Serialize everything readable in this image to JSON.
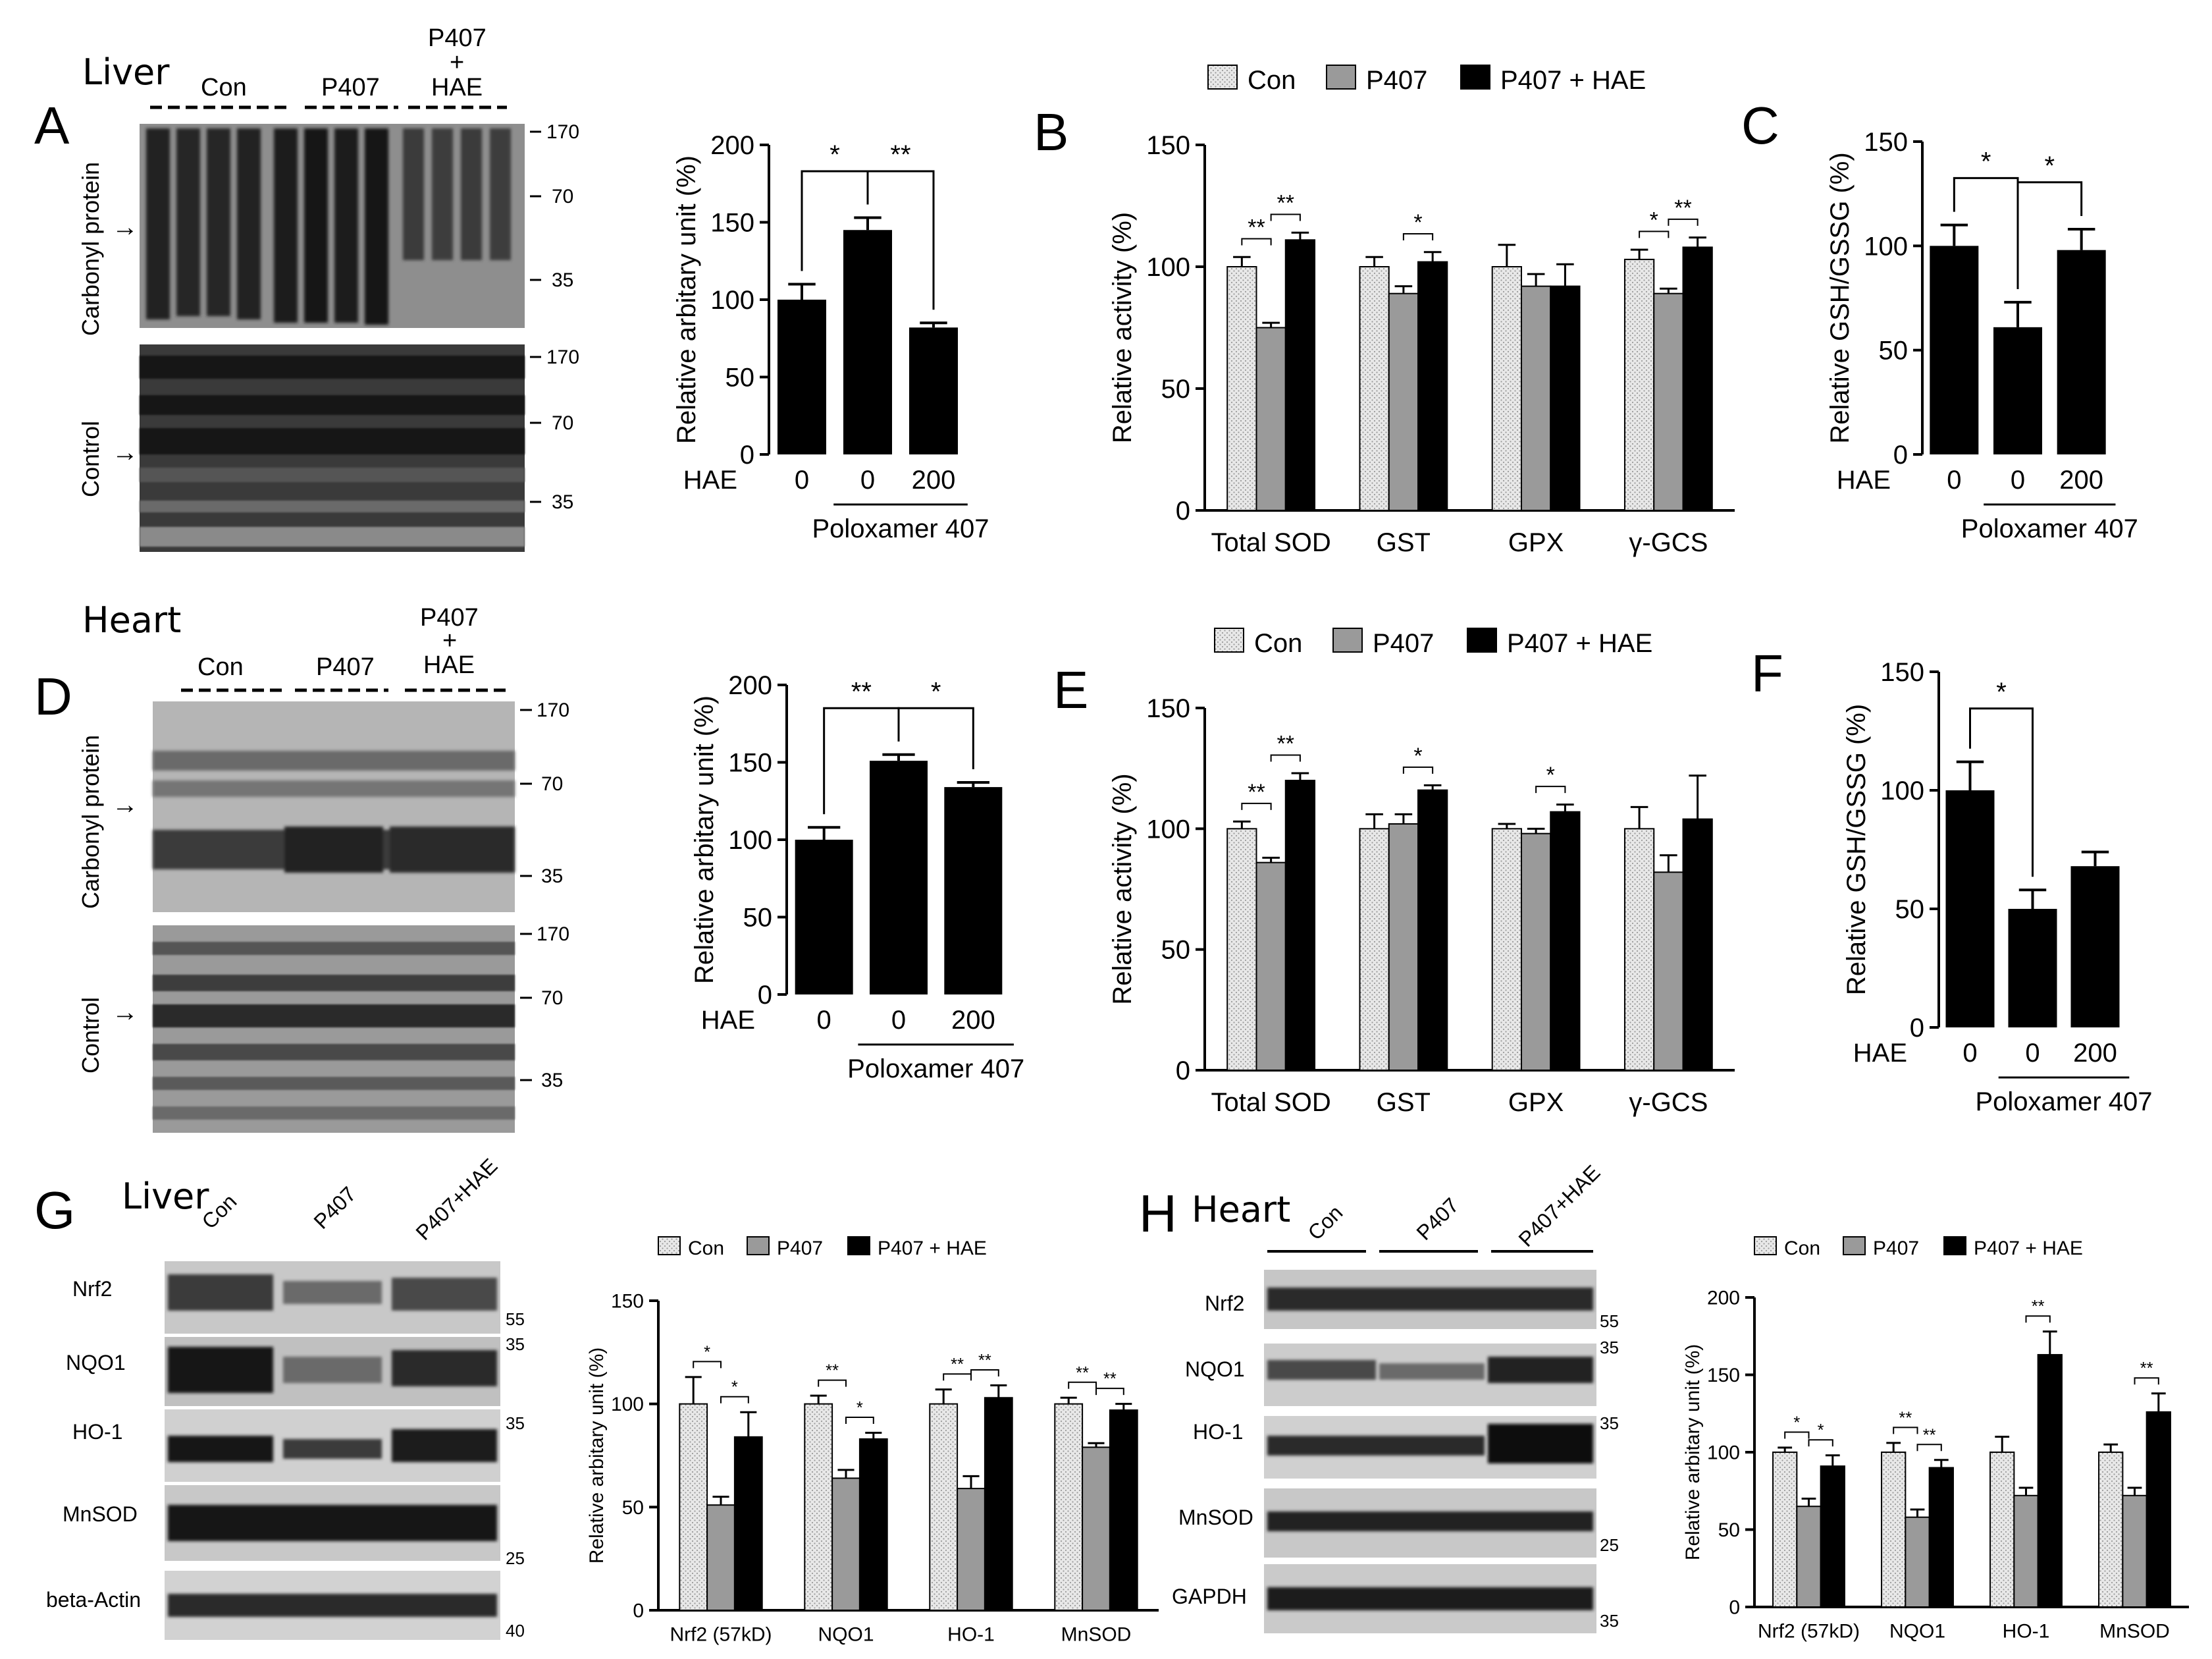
{
  "figure": {
    "panel_letters": [
      "A",
      "B",
      "C",
      "D",
      "E",
      "F",
      "G",
      "H"
    ],
    "tissues": {
      "liver": "Liver",
      "heart": "Heart"
    },
    "groups": {
      "con": "Con",
      "p407": "P407",
      "p407_plus": "P407",
      "plus_sign": "+",
      "hae": "HAE",
      "p407hae": "P407+HAE"
    },
    "blot_labels": {
      "carbonyl": "Carbonyl protein",
      "control": "Control",
      "arrow": "→"
    },
    "mw_markers": {
      "carbonyl": [
        "170",
        "70",
        "35"
      ],
      "control": [
        "170",
        "70",
        "35"
      ],
      "g_nrf2": "55",
      "g_nqo1": "35",
      "g_ho1": "35",
      "g_mnsod": "25",
      "g_actin": "40",
      "h_nrf2": "55",
      "h_nqo1": "35",
      "h_ho1": "35",
      "h_mnsod": "25",
      "h_gapdh": "35"
    },
    "protein_labels_g": [
      "Nrf2",
      "NQO1",
      "HO-1",
      "MnSOD",
      "beta-Actin"
    ],
    "protein_labels_h": [
      "Nrf2",
      "NQO1",
      "HO-1",
      "MnSOD",
      "GAPDH"
    ],
    "colors": {
      "con": "#e4e4e4",
      "p407": "#9a9a9a",
      "hae": "#000000"
    }
  },
  "chart_data": [
    {
      "id": "A-bar",
      "type": "bar",
      "ylabel": "Relative arbitary unit (%)",
      "ylim": [
        0,
        200
      ],
      "yticks": [
        "0",
        "50",
        "100",
        "150",
        "200"
      ],
      "x_row_label": "HAE",
      "categories": [
        "0",
        "0",
        "200"
      ],
      "values": [
        100,
        145,
        82
      ],
      "errors": [
        10,
        8,
        3
      ],
      "group_label": "Poloxamer 407",
      "sig": [
        {
          "label": "*"
        },
        {
          "label": "**"
        }
      ]
    },
    {
      "id": "B",
      "type": "bar",
      "legend": [
        "Con",
        "P407",
        "P407 + HAE"
      ],
      "ylabel": "Relative activity (%)",
      "ylim": [
        0,
        150
      ],
      "yticks": [
        "0",
        "50",
        "100",
        "150"
      ],
      "categories": [
        "Total SOD",
        "GST",
        "GPX",
        "γ-GCS"
      ],
      "series": [
        {
          "name": "Con",
          "values": [
            100,
            100,
            100,
            103
          ],
          "errors": [
            4,
            4,
            9,
            4
          ]
        },
        {
          "name": "P407",
          "values": [
            75,
            89,
            92,
            89
          ],
          "errors": [
            2,
            3,
            5,
            2
          ]
        },
        {
          "name": "P407 + HAE",
          "values": [
            111,
            102,
            92,
            108
          ],
          "errors": [
            3,
            4,
            9,
            4
          ]
        }
      ],
      "sig": [
        "**",
        "**",
        "*",
        "*",
        "**"
      ]
    },
    {
      "id": "C",
      "type": "bar",
      "ylabel": "Relative GSH/GSSG (%)",
      "ylim": [
        0,
        150
      ],
      "yticks": [
        "0",
        "50",
        "100",
        "150"
      ],
      "x_row_label": "HAE",
      "categories": [
        "0",
        "0",
        "200"
      ],
      "values": [
        100,
        61,
        98
      ],
      "errors": [
        10,
        12,
        10
      ],
      "group_label": "Poloxamer 407",
      "sig": [
        {
          "label": "*"
        },
        {
          "label": "*"
        }
      ]
    },
    {
      "id": "D-bar",
      "type": "bar",
      "ylabel": "Relative arbitary unit (%)",
      "ylim": [
        0,
        200
      ],
      "yticks": [
        "0",
        "50",
        "100",
        "150",
        "200"
      ],
      "x_row_label": "HAE",
      "categories": [
        "0",
        "0",
        "200"
      ],
      "values": [
        100,
        151,
        134
      ],
      "errors": [
        8,
        4,
        3
      ],
      "group_label": "Poloxamer 407",
      "sig": [
        {
          "label": "**"
        },
        {
          "label": "*"
        }
      ]
    },
    {
      "id": "E",
      "type": "bar",
      "legend": [
        "Con",
        "P407",
        "P407 + HAE"
      ],
      "ylabel": "Relative activity (%)",
      "ylim": [
        0,
        150
      ],
      "yticks": [
        "0",
        "50",
        "100",
        "150"
      ],
      "categories": [
        "Total SOD",
        "GST",
        "GPX",
        "γ-GCS"
      ],
      "series": [
        {
          "name": "Con",
          "values": [
            100,
            100,
            100,
            100
          ],
          "errors": [
            3,
            6,
            2,
            9
          ]
        },
        {
          "name": "P407",
          "values": [
            86,
            102,
            98,
            82
          ],
          "errors": [
            2,
            4,
            2,
            7
          ]
        },
        {
          "name": "P407 + HAE",
          "values": [
            120,
            116,
            107,
            104
          ],
          "errors": [
            3,
            2,
            3,
            18
          ]
        }
      ],
      "sig": [
        "**",
        "**",
        "*",
        "*"
      ]
    },
    {
      "id": "F",
      "type": "bar",
      "ylabel": "Relative GSH/GSSG (%)",
      "ylim": [
        0,
        150
      ],
      "yticks": [
        "0",
        "50",
        "100",
        "150"
      ],
      "x_row_label": "HAE",
      "categories": [
        "0",
        "0",
        "200"
      ],
      "values": [
        100,
        50,
        68
      ],
      "errors": [
        12,
        8,
        6
      ],
      "group_label": "Poloxamer 407",
      "sig": [
        {
          "label": "*"
        }
      ]
    },
    {
      "id": "G-bar",
      "type": "bar",
      "legend": [
        "Con",
        "P407",
        "P407 + HAE"
      ],
      "ylabel": "Relative arbitary unit (%)",
      "ylim": [
        0,
        150
      ],
      "yticks": [
        "0",
        "50",
        "100",
        "150"
      ],
      "categories": [
        "Nrf2 (57kD)",
        "NQO1",
        "HO-1",
        "MnSOD"
      ],
      "series": [
        {
          "name": "Con",
          "values": [
            100,
            100,
            100,
            100
          ],
          "errors": [
            13,
            4,
            7,
            3
          ]
        },
        {
          "name": "P407",
          "values": [
            51,
            64,
            59,
            79
          ],
          "errors": [
            4,
            4,
            6,
            2
          ]
        },
        {
          "name": "P407 + HAE",
          "values": [
            84,
            83,
            103,
            97
          ],
          "errors": [
            12,
            3,
            6,
            3
          ]
        }
      ],
      "sig": [
        "*",
        "*",
        "**",
        "*",
        "**",
        "**",
        "**",
        "**"
      ]
    },
    {
      "id": "H-bar",
      "type": "bar",
      "legend": [
        "Con",
        "P407",
        "P407 + HAE"
      ],
      "ylabel": "Relative arbitary unit (%)",
      "ylim": [
        0,
        200
      ],
      "yticks": [
        "0",
        "50",
        "100",
        "150",
        "200"
      ],
      "categories": [
        "Nrf2 (57kD)",
        "NQO1",
        "HO-1",
        "MnSOD"
      ],
      "series": [
        {
          "name": "Con",
          "values": [
            100,
            100,
            100,
            100
          ],
          "errors": [
            3,
            6,
            10,
            5
          ]
        },
        {
          "name": "P407",
          "values": [
            65,
            58,
            72,
            72
          ],
          "errors": [
            5,
            5,
            5,
            5
          ]
        },
        {
          "name": "P407 + HAE",
          "values": [
            91,
            90,
            163,
            126
          ],
          "errors": [
            7,
            5,
            15,
            12
          ]
        }
      ],
      "sig": [
        "*",
        "*",
        "**",
        "**",
        "**",
        "**"
      ]
    }
  ]
}
